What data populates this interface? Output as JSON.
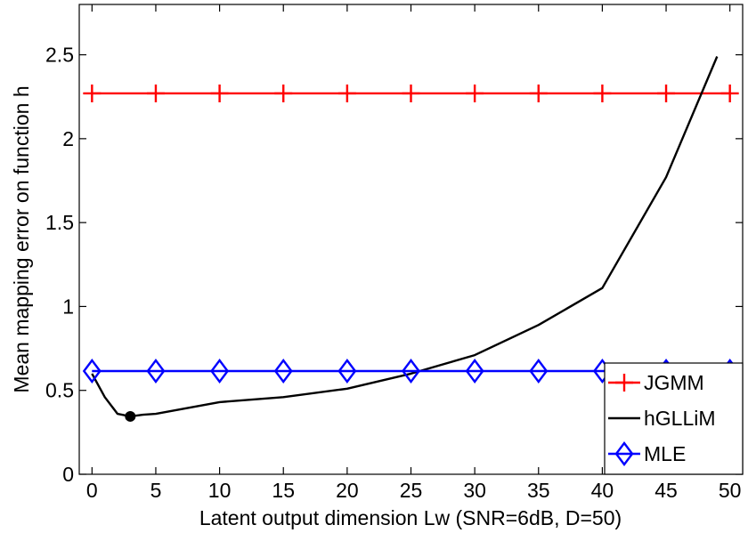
{
  "chart_data": {
    "type": "line",
    "xlabel": "Latent output dimension Lw (SNR=6dB, D=50)",
    "ylabel": "Mean mapping error on function h",
    "xlim": [
      -1,
      51
    ],
    "ylim": [
      0,
      2.8
    ],
    "xticks": [
      0,
      5,
      10,
      15,
      20,
      25,
      30,
      35,
      40,
      45,
      50
    ],
    "yticks": [
      0,
      0.5,
      1,
      1.5,
      2,
      2.5
    ],
    "ytick_labels": [
      "0",
      "0.5",
      "1",
      "1.5",
      "2",
      "2.5"
    ],
    "grid": false,
    "legend_position": "bottom-right",
    "series": [
      {
        "name": "JGMM",
        "color": "#ff0000",
        "marker": "plus",
        "x": [
          0,
          5,
          10,
          15,
          20,
          25,
          30,
          35,
          40,
          45,
          50
        ],
        "y": [
          2.27,
          2.27,
          2.27,
          2.27,
          2.27,
          2.27,
          2.27,
          2.27,
          2.27,
          2.27,
          2.27
        ]
      },
      {
        "name": "hGLLiM",
        "color": "#000000",
        "marker": "none",
        "x": [
          0,
          1,
          2,
          3,
          4,
          5,
          10,
          15,
          20,
          25,
          30,
          35,
          40,
          45,
          49
        ],
        "y": [
          0.6,
          0.46,
          0.36,
          0.345,
          0.355,
          0.36,
          0.43,
          0.46,
          0.51,
          0.6,
          0.71,
          0.89,
          1.11,
          1.77,
          2.49
        ]
      },
      {
        "name": "MLE",
        "color": "#0000ff",
        "marker": "diamond",
        "x": [
          0,
          5,
          10,
          15,
          20,
          25,
          30,
          35,
          40,
          45,
          50
        ],
        "y": [
          0.615,
          0.615,
          0.615,
          0.615,
          0.615,
          0.615,
          0.615,
          0.615,
          0.615,
          0.615,
          0.615
        ]
      }
    ],
    "highlight_point": {
      "x": 3,
      "y": 0.345,
      "color": "#000000"
    }
  }
}
